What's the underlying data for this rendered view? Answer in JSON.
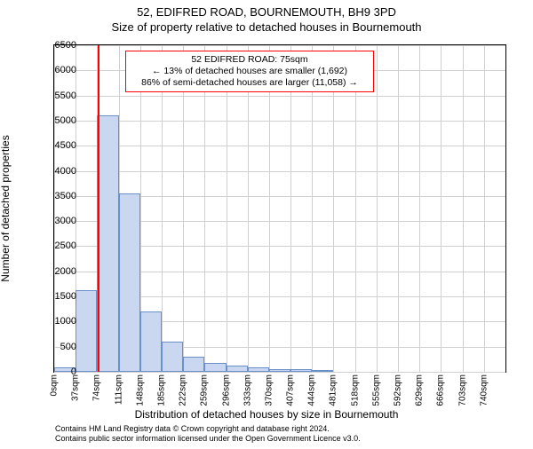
{
  "title_line1": "52, EDIFRED ROAD, BOURNEMOUTH, BH9 3PD",
  "title_line2": "Size of property relative to detached houses in Bournemouth",
  "ylabel": "Number of detached properties",
  "xlabel": "Distribution of detached houses by size in Bournemouth",
  "attribution_line1": "Contains HM Land Registry data © Crown copyright and database right 2024.",
  "attribution_line2": "Contains public sector information licensed under the Open Government Licence v3.0.",
  "chart": {
    "type": "histogram",
    "ymin": 0,
    "ymax": 6500,
    "ytick_step": 500,
    "grid_color": "#d0d0d0",
    "background_color": "#ffffff",
    "bar_fill": "#c9d8f0",
    "bar_border": "#6b8fc8",
    "marker_color": "#ff0000",
    "marker_x_value": 75,
    "x_start": 0,
    "x_step": 37,
    "x_label_step": 37,
    "x_label_count": 21,
    "x_unit": "sqm",
    "bar_count": 21,
    "bar_values": [
      80,
      1620,
      5100,
      3550,
      1200,
      600,
      300,
      180,
      120,
      90,
      60,
      50,
      30,
      0,
      0,
      0,
      0,
      0,
      0,
      0,
      0
    ],
    "annotation": {
      "line1": "52 EDIFRED ROAD: 75sqm",
      "line2": "← 13% of detached houses are smaller (1,692)",
      "line3": "86% of semi-detached houses are larger (11,058) →",
      "box_border": "#ff0000"
    },
    "tick_fontsize": 11,
    "label_fontsize": 12,
    "title_fontsize": 13
  }
}
